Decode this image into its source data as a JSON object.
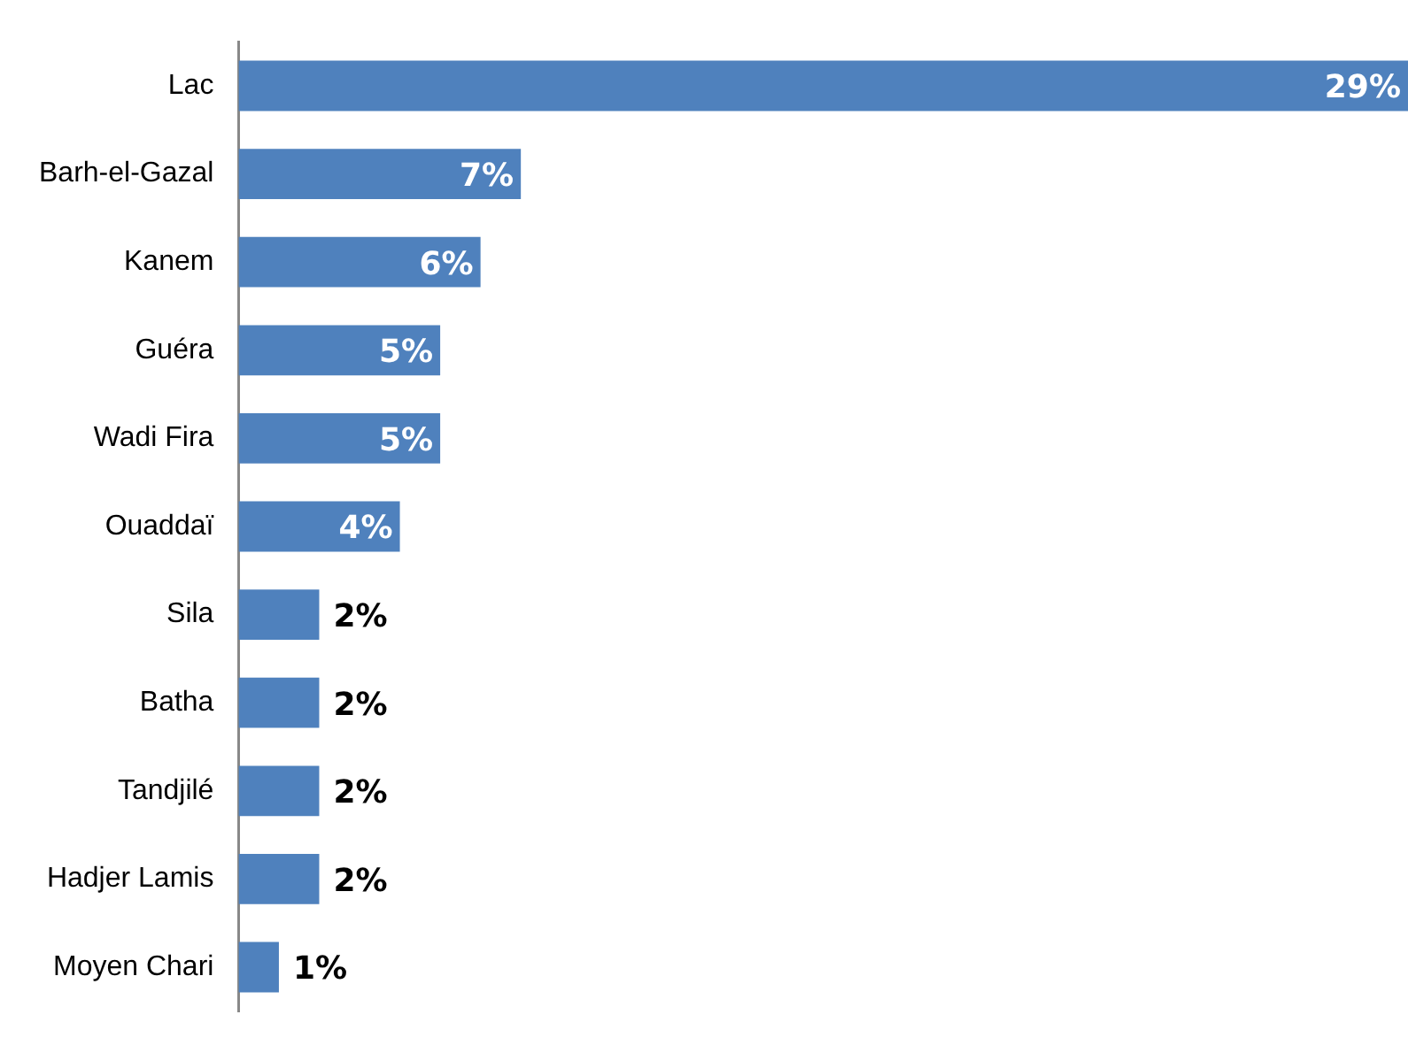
{
  "chart_data": {
    "type": "bar",
    "orientation": "horizontal",
    "categories": [
      "Lac",
      "Barh-el-Gazal",
      "Kanem",
      "Guéra",
      "Wadi Fira",
      "Ouaddaï",
      "Sila",
      "Batha",
      "Tandjilé",
      "Hadjer Lamis",
      "Moyen Chari"
    ],
    "values": [
      29,
      7,
      6,
      5,
      5,
      4,
      2,
      2,
      2,
      2,
      1
    ],
    "value_labels": [
      "29%",
      "7%",
      "6%",
      "5%",
      "5%",
      "4%",
      "2%",
      "2%",
      "2%",
      "2%",
      "1%"
    ],
    "color": "#4f81bd",
    "grid": false,
    "legend": false
  }
}
